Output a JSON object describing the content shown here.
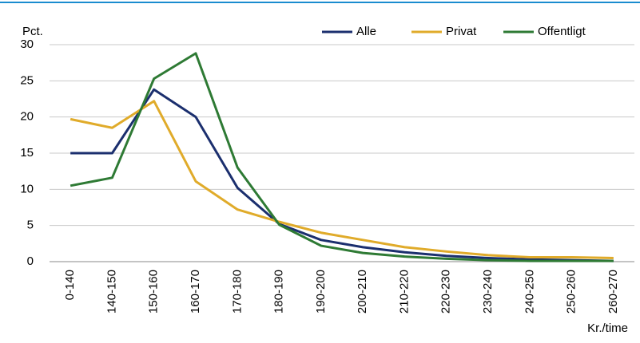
{
  "chart_data": {
    "type": "line",
    "y_label": "Pct.",
    "x_label": "Kr./time",
    "categories": [
      "0-140",
      "140-150",
      "150-160",
      "160-170",
      "170-180",
      "180-190",
      "190-200",
      "200-210",
      "210-220",
      "220-230",
      "230-240",
      "240-250",
      "250-260",
      "260-270"
    ],
    "series": [
      {
        "name": "Alle",
        "color": "#1b2f6e",
        "values": [
          15,
          15,
          23.8,
          20,
          10.2,
          5.2,
          3,
          2,
          1.3,
          0.8,
          0.5,
          0.3,
          0.2,
          0.1
        ]
      },
      {
        "name": "Privat",
        "color": "#e0ab2a",
        "values": [
          19.7,
          18.5,
          22.2,
          11.1,
          7.2,
          5.5,
          4,
          3,
          2,
          1.4,
          0.9,
          0.6,
          0.6,
          0.5
        ]
      },
      {
        "name": "Offentligt",
        "color": "#2e7a34",
        "values": [
          10.5,
          11.6,
          25.3,
          28.8,
          13,
          5.1,
          2.2,
          1.2,
          0.7,
          0.4,
          0.2,
          0.1,
          0.1,
          0.1
        ]
      }
    ],
    "ylim": [
      0,
      30
    ],
    "yticks": [
      0,
      5,
      10,
      15,
      20,
      25,
      30
    ],
    "grid": true,
    "legend": "top-right"
  }
}
